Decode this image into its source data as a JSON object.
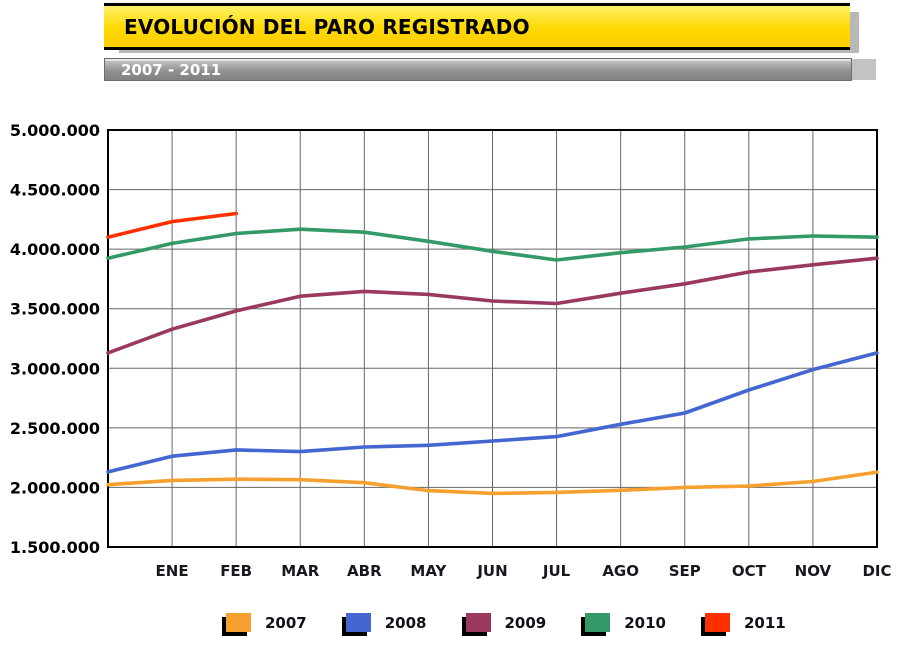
{
  "header": {
    "title": "EVOLUCIÓN DEL PARO REGISTRADO",
    "subtitle": "2007 - 2011"
  },
  "chart_data": {
    "type": "line",
    "title": "EVOLUCIÓN DEL PARO REGISTRADO",
    "subtitle": "2007 - 2011",
    "xlabel": "",
    "ylabel": "",
    "ylim": [
      1500000,
      5000000
    ],
    "ytick_step": 500000,
    "grid": true,
    "legend_position": "bottom",
    "x_categories": [
      "ENE",
      "FEB",
      "MAR",
      "ABR",
      "MAY",
      "JUN",
      "JUL",
      "AGO",
      "SEP",
      "OCT",
      "NOV",
      "DIC"
    ],
    "series": [
      {
        "name": "2007",
        "color": "#F5A02F",
        "start_value": 2023000,
        "values": [
          2059000,
          2069000,
          2065000,
          2040000,
          1973000,
          1950000,
          1958000,
          1976000,
          2000000,
          2012000,
          2050000,
          2129000
        ]
      },
      {
        "name": "2008",
        "color": "#4466D0",
        "start_value": 2130000,
        "values": [
          2262000,
          2315000,
          2301000,
          2339000,
          2354000,
          2390000,
          2427000,
          2530000,
          2625000,
          2818000,
          2989000,
          3129000
        ]
      },
      {
        "name": "2009",
        "color": "#99395F",
        "start_value": 3129000,
        "values": [
          3328000,
          3482000,
          3605000,
          3645000,
          3620000,
          3565000,
          3544000,
          3630000,
          3709000,
          3808000,
          3869000,
          3924000
        ]
      },
      {
        "name": "2010",
        "color": "#339966",
        "start_value": 3924000,
        "values": [
          4048000,
          4131000,
          4167000,
          4142000,
          4066000,
          3982000,
          3909000,
          3970000,
          4018000,
          4086000,
          4110000,
          4100000
        ]
      },
      {
        "name": "2011",
        "color": "#FF3000",
        "start_value": 4100000,
        "values": [
          4231000,
          4299000
        ]
      }
    ]
  }
}
